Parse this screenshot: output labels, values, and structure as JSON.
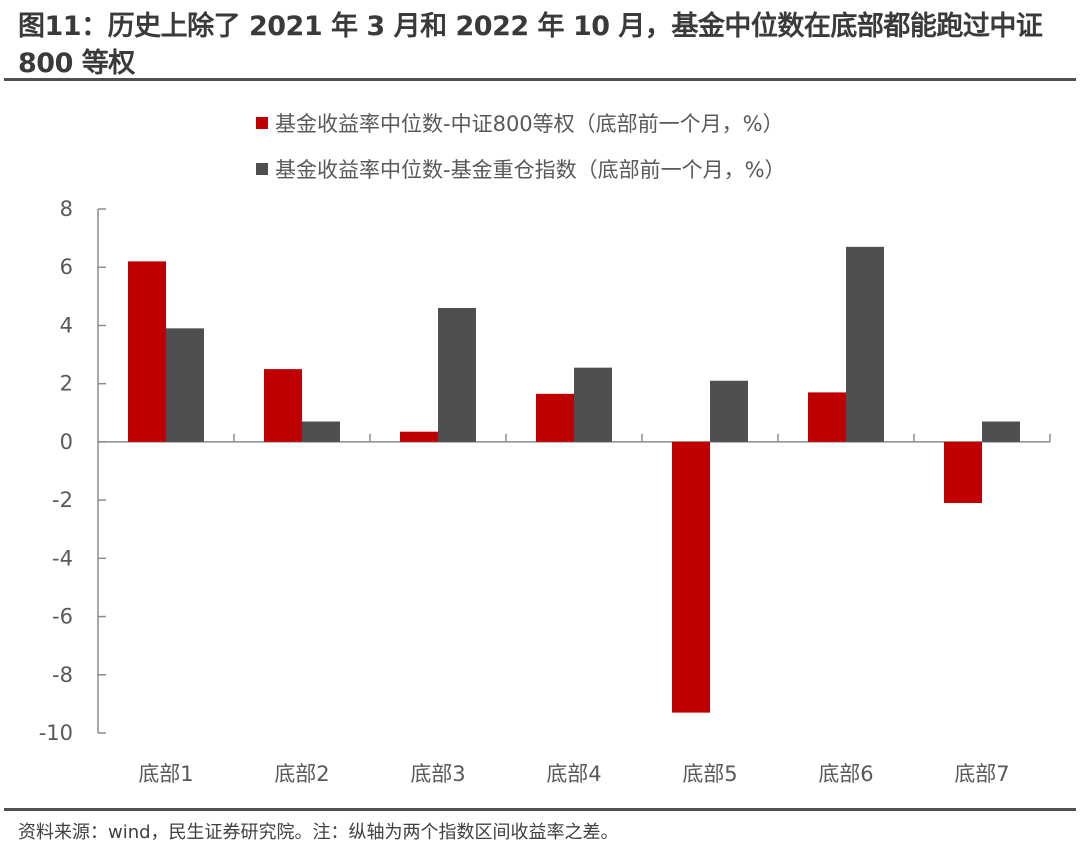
{
  "title": "图11：历史上除了 2021 年 3 月和 2022 年 10 月，基金中位数在底部都能跑过中证 800 等权",
  "source": "资料来源：wind，民生证券研究院。注：纵轴为两个指数区间收益率之差。",
  "colors": {
    "series1": "#C00000",
    "series2": "#4D4F51",
    "axis": "#8C8C8C",
    "text": "#595959"
  },
  "chart_data": {
    "type": "bar",
    "title": "",
    "xlabel": "",
    "ylabel": "",
    "ylim": [
      -10,
      8
    ],
    "yticks": [
      8,
      6,
      4,
      2,
      0,
      -2,
      -4,
      -6,
      -8,
      -10
    ],
    "ytick_labels": [
      "8",
      "6",
      "4",
      "2",
      "0",
      "-2",
      "-4",
      "-6",
      "-8",
      "-10"
    ],
    "grid": false,
    "legend_position": "top",
    "categories": [
      "底部1",
      "底部2",
      "底部3",
      "底部4",
      "底部5",
      "底部6",
      "底部7"
    ],
    "series": [
      {
        "name": "基金收益率中位数-中证800等权（底部前一个月，%）",
        "color": "#C00000",
        "values": [
          6.2,
          2.5,
          0.35,
          1.65,
          -9.3,
          1.7,
          -2.1
        ]
      },
      {
        "name": "基金收益率中位数-基金重仓指数（底部前一个月，%）",
        "color": "#4D4F51",
        "values": [
          3.9,
          0.7,
          4.6,
          2.55,
          2.1,
          6.7,
          0.7
        ]
      }
    ]
  }
}
